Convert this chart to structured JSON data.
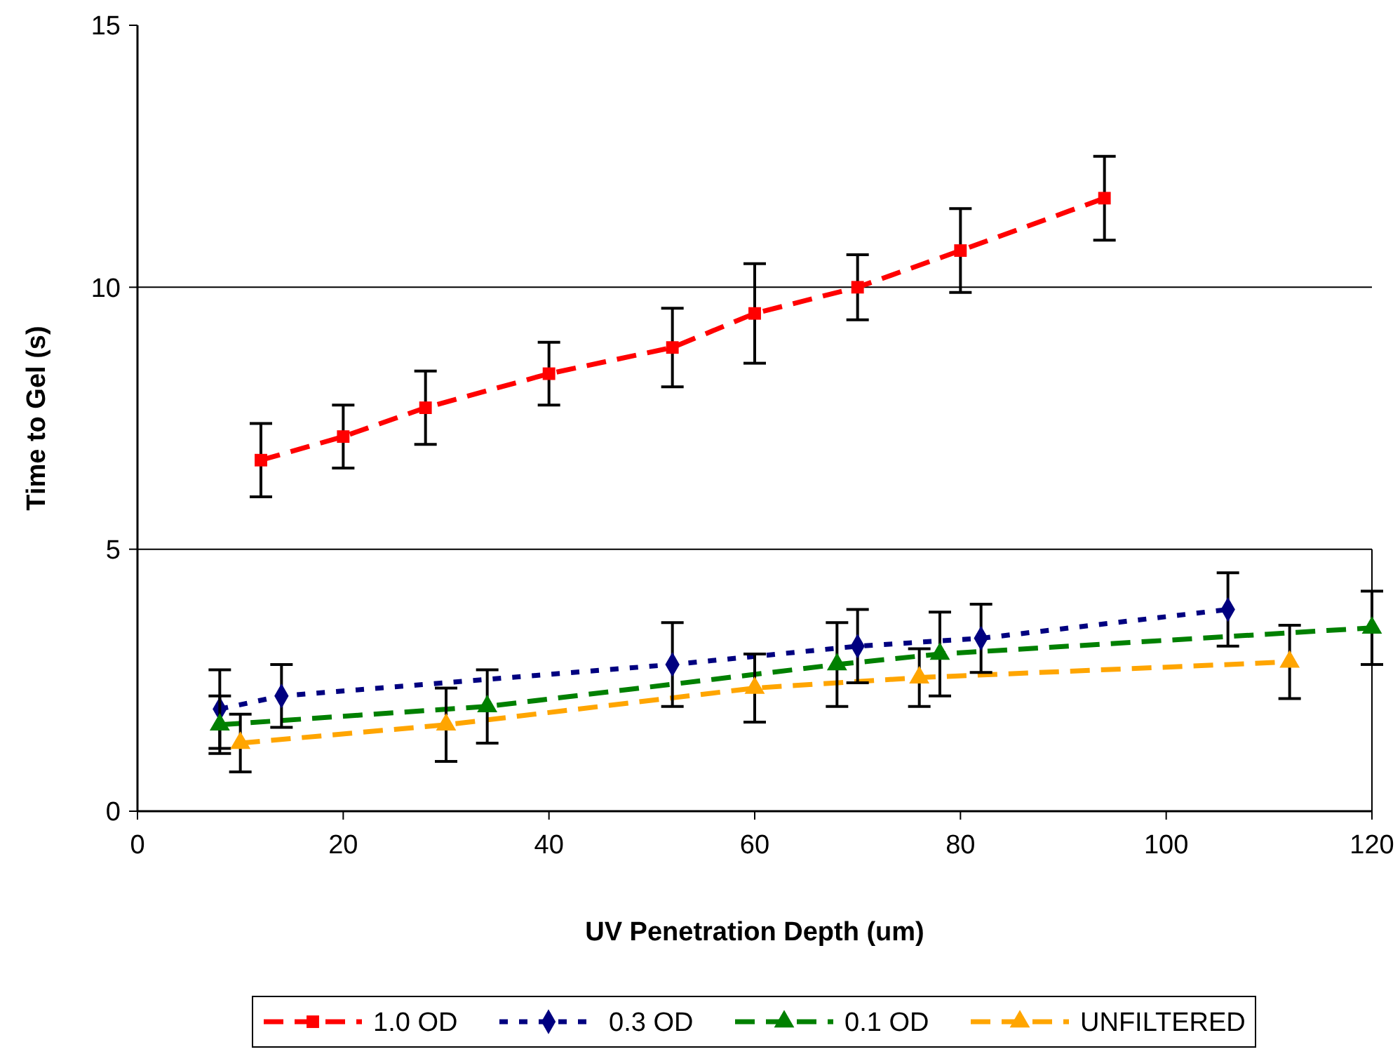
{
  "chart_data": {
    "type": "line",
    "xlabel": "UV Penetration Depth (um)",
    "ylabel": "Time to Gel (s)",
    "xlim": [
      0,
      120
    ],
    "xticks": [
      0,
      20,
      40,
      60,
      80,
      100,
      120
    ],
    "ylim": [
      0,
      15
    ],
    "yticks": [
      0,
      5,
      10,
      15
    ],
    "grid": "y",
    "legend": "bottom",
    "series": [
      {
        "name": "1.0 OD",
        "color": "#ff0000",
        "marker": "square",
        "line_style": "dashed",
        "x": [
          12,
          20,
          28,
          40,
          52,
          60,
          70,
          80,
          94
        ],
        "values": [
          6.7,
          7.15,
          7.7,
          8.35,
          8.85,
          9.5,
          10.0,
          10.7,
          11.7
        ],
        "errors": [
          0.7,
          0.6,
          0.7,
          0.6,
          0.75,
          0.95,
          0.62,
          0.8,
          0.8
        ]
      },
      {
        "name": "0.3 OD",
        "color": "#000080",
        "marker": "diamond",
        "line_style": "dotted",
        "x": [
          8,
          14,
          52,
          70,
          82,
          106
        ],
        "values": [
          1.95,
          2.2,
          2.8,
          3.15,
          3.3,
          3.85
        ],
        "errors": [
          0.75,
          0.6,
          0.8,
          0.7,
          0.65,
          0.7
        ]
      },
      {
        "name": "0.1 OD",
        "color": "#008000",
        "marker": "triangle",
        "line_style": "dashed",
        "x": [
          8,
          34,
          68,
          78,
          120
        ],
        "values": [
          1.65,
          2.0,
          2.8,
          3.0,
          3.5
        ],
        "errors": [
          0.55,
          0.7,
          0.8,
          0.8,
          0.7
        ]
      },
      {
        "name": "UNFILTERED",
        "color": "#ffa500",
        "marker": "triangle",
        "line_style": "dashed",
        "x": [
          10,
          30,
          60,
          76,
          112
        ],
        "values": [
          1.3,
          1.65,
          2.35,
          2.55,
          2.85
        ],
        "errors": [
          0.55,
          0.7,
          0.65,
          0.55,
          0.7
        ]
      }
    ]
  }
}
